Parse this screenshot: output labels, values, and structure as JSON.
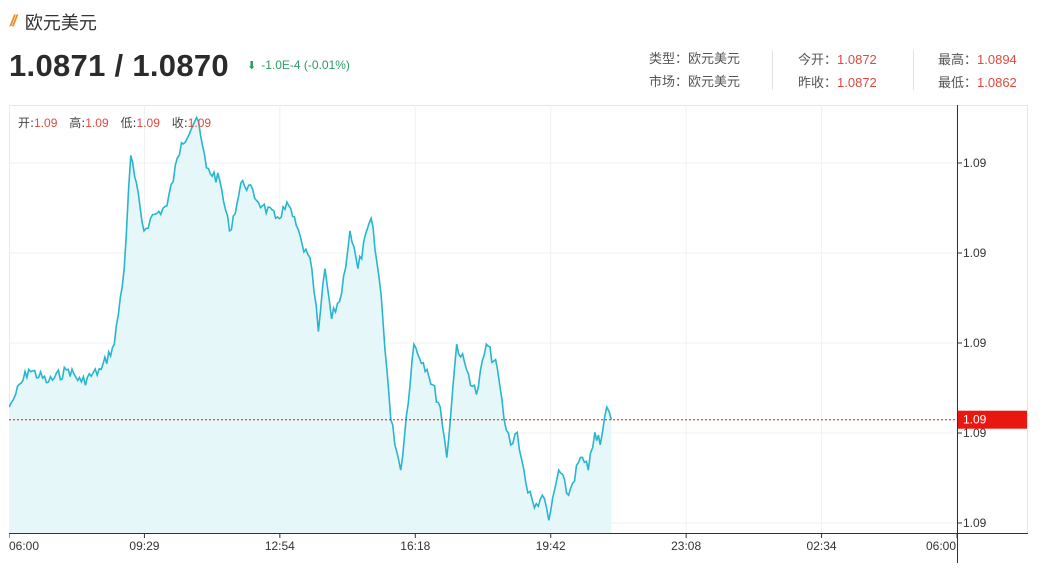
{
  "header": {
    "title": "欧元美元",
    "price": "1.0871 / 1.0870",
    "change": "-1.0E-4 (-0.01%)"
  },
  "info": {
    "type_label": "类型：",
    "type_value": "欧元美元",
    "market_label": "市场：",
    "market_value": "欧元美元",
    "open_label": "今开：",
    "open_value": "1.0872",
    "prev_close_label": "昨收：",
    "prev_close_value": "1.0872",
    "high_label": "最高：",
    "high_value": "1.0894",
    "low_label": "最低：",
    "low_value": "1.0862"
  },
  "ohlc": {
    "open_label": "开:",
    "open_value": "1.09",
    "high_label": "高:",
    "high_value": "1.09",
    "low_label": "低:",
    "low_value": "1.09",
    "close_label": "收:",
    "close_value": "1.09"
  },
  "colors": {
    "line": "#27b6cf",
    "area": "#e6f7f9",
    "price_tag": "#e8170f",
    "current_line": "#e8170f",
    "grid": "#eef1f3",
    "down": "#2a9d63"
  },
  "chart_data": {
    "type": "area",
    "title": "",
    "x_ticks": [
      "06:00",
      "09:29",
      "12:54",
      "16:18",
      "19:42",
      "23:08",
      "02:34",
      "06:00"
    ],
    "y_ticks": [
      "1.09",
      "1.09",
      "1.09",
      "1.09",
      "1.09"
    ],
    "y_range": [
      1.0861,
      1.0895
    ],
    "x_range_minutes": [
      0,
      1440
    ],
    "current_value": 1.087,
    "current_label": "1.09",
    "grid": true,
    "series": [
      {
        "x": [
          0,
          10,
          30,
          60,
          90,
          110,
          140,
          160,
          175,
          185,
          205,
          215,
          240,
          262,
          285,
          300,
          320,
          335,
          355,
          385,
          405,
          425,
          445,
          460,
          470,
          480,
          490,
          505,
          518,
          530,
          550,
          565,
          580,
          595,
          615,
          635,
          655,
          665,
          680,
          695,
          710,
          725,
          742,
          752,
          762,
          772,
          785,
          798,
          810,
          820,
          835,
          850,
          868,
          880,
          890,
          898,
          908,
          915
        ],
        "y": [
          1.0871,
          1.0872,
          1.0874,
          1.0873,
          1.0874,
          1.0873,
          1.0874,
          1.0876,
          1.0882,
          1.0891,
          1.0885,
          1.0886,
          1.0887,
          1.0892,
          1.0894,
          1.089,
          1.0889,
          1.0885,
          1.0889,
          1.0887,
          1.0886,
          1.0887,
          1.0884,
          1.0882,
          1.0877,
          1.0882,
          1.0878,
          1.088,
          1.0885,
          1.0882,
          1.0886,
          1.088,
          1.087,
          1.0866,
          1.0876,
          1.0874,
          1.0871,
          1.0867,
          1.0876,
          1.0874,
          1.0872,
          1.0876,
          1.0874,
          1.087,
          1.0868,
          1.0869,
          1.0865,
          1.0863,
          1.0864,
          1.0862,
          1.0866,
          1.0864,
          1.0867,
          1.0866,
          1.0869,
          1.0868,
          1.0871,
          1.087
        ]
      }
    ]
  }
}
